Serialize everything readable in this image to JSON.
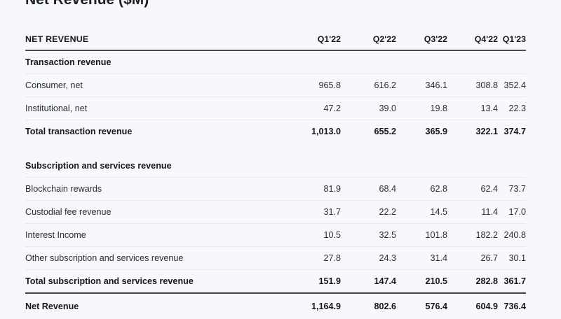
{
  "title": "Net Revenue ($M)",
  "table": {
    "header": {
      "label": "NET REVENUE",
      "quarters": [
        "Q1'22",
        "Q2'22",
        "Q3'22",
        "Q4'22",
        "Q1'23"
      ]
    },
    "transaction": {
      "heading": "Transaction revenue",
      "rows": [
        {
          "label": "Consumer, net",
          "values": [
            "965.8",
            "616.2",
            "346.1",
            "308.8",
            "352.4"
          ]
        },
        {
          "label": "Institutional, net",
          "values": [
            "47.2",
            "39.0",
            "19.8",
            "13.4",
            "22.3"
          ]
        }
      ],
      "total": {
        "label": "Total transaction revenue",
        "values": [
          "1,013.0",
          "655.2",
          "365.9",
          "322.1",
          "374.7"
        ]
      }
    },
    "subscription": {
      "heading": "Subscription and services revenue",
      "rows": [
        {
          "label": "Blockchain rewards",
          "values": [
            "81.9",
            "68.4",
            "62.8",
            "62.4",
            "73.7"
          ]
        },
        {
          "label": "Custodial fee revenue",
          "values": [
            "31.7",
            "22.2",
            "14.5",
            "11.4",
            "17.0"
          ]
        },
        {
          "label": "Interest Income",
          "values": [
            "10.5",
            "32.5",
            "101.8",
            "182.2",
            "240.8"
          ]
        },
        {
          "label": "Other subscription and services revenue",
          "values": [
            "27.8",
            "24.3",
            "31.4",
            "26.7",
            "30.1"
          ]
        }
      ],
      "total": {
        "label": "Total subscription and services revenue",
        "values": [
          "151.9",
          "147.4",
          "210.5",
          "282.8",
          "361.7"
        ]
      }
    },
    "grand_total": {
      "label": "Net Revenue",
      "values": [
        "1,164.9",
        "802.6",
        "576.4",
        "604.9",
        "736.4"
      ]
    }
  }
}
